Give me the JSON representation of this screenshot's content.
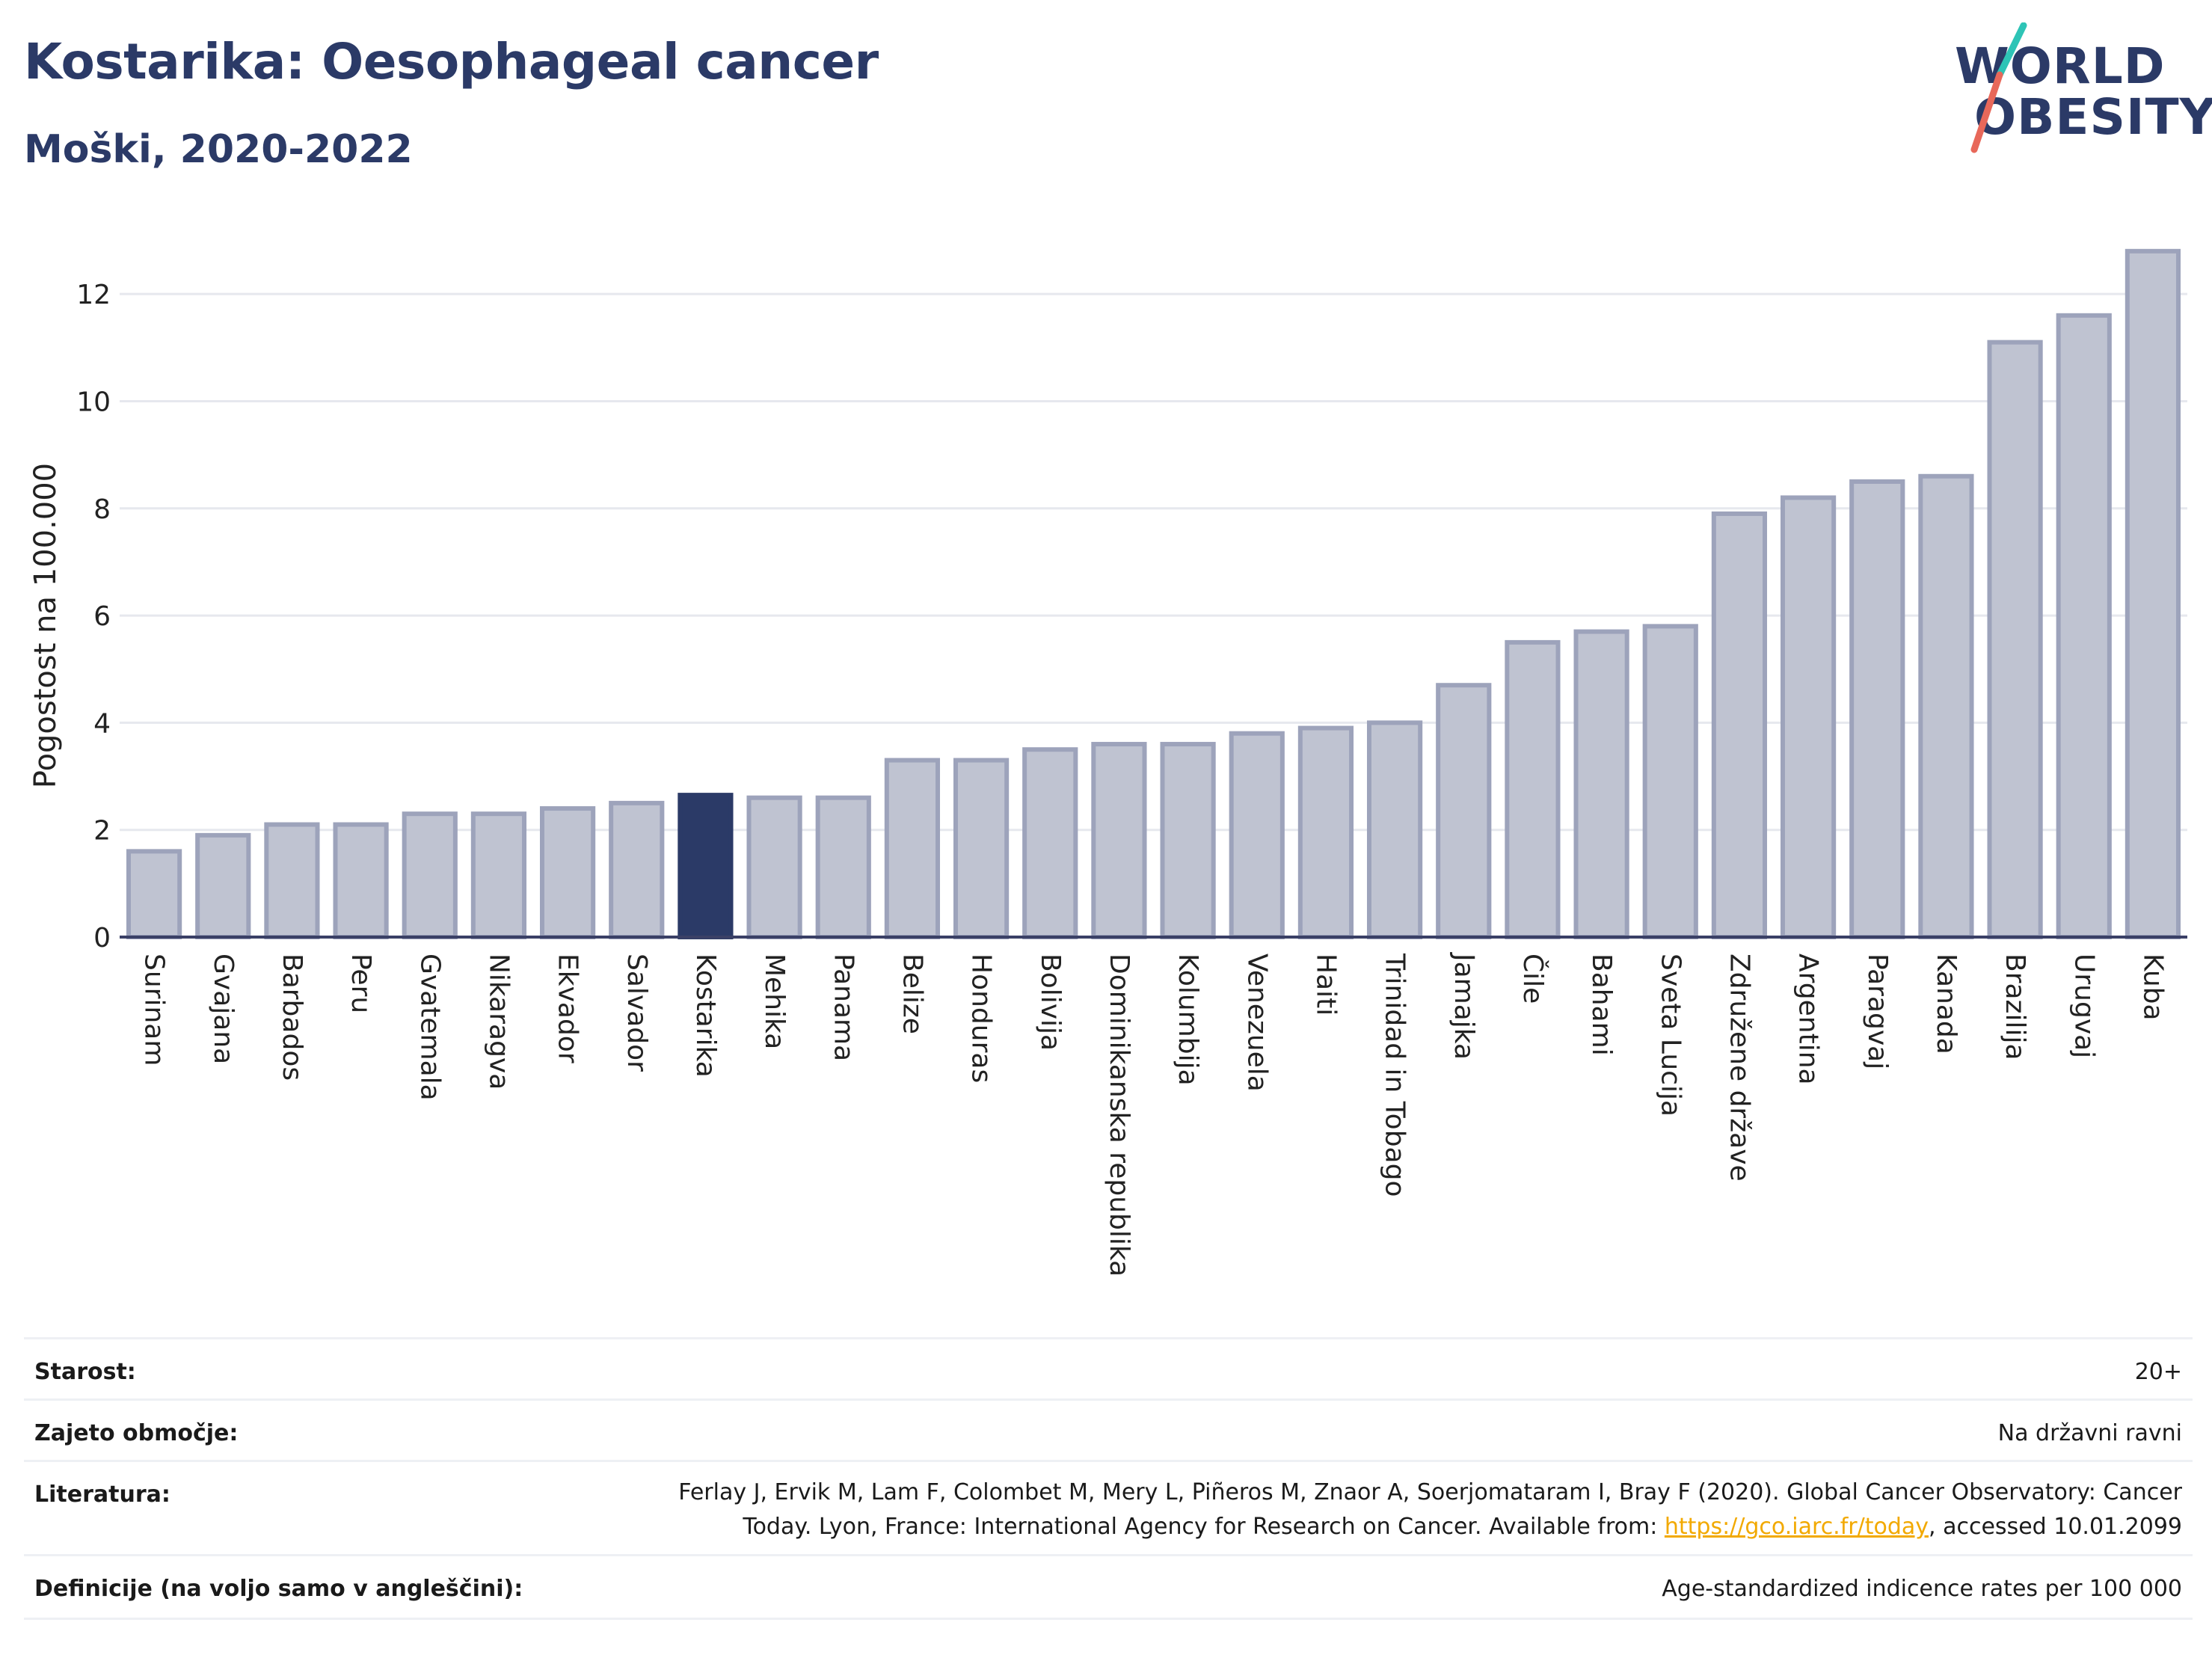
{
  "header": {
    "title": "Kostarika: Oesophageal cancer",
    "subtitle": "Moški, 2020-2022"
  },
  "logo": {
    "line1": "WORLD",
    "line2": "OBESITY",
    "colors": {
      "text": "#2b3a67",
      "slash_top": "#2ec4b6",
      "slash_bottom": "#e8685a"
    }
  },
  "chart_data": {
    "type": "bar",
    "ylabel": "Pogostost na 100.000",
    "xlabel": "",
    "ylim": [
      0,
      13.3
    ],
    "yticks": [
      0,
      2,
      4,
      6,
      8,
      10,
      12
    ],
    "grid": true,
    "highlight": "Kostarika",
    "colors": {
      "bar": "#bfc3d1",
      "bar_edge": "#9da3bb",
      "highlight": "#2b3a67",
      "grid": "#e6e8ee",
      "axis": "#3a4066"
    },
    "categories": [
      "Surinam",
      "Gvajana",
      "Barbados",
      "Peru",
      "Gvatemala",
      "Nikaragva",
      "Ekvador",
      "Salvador",
      "Kostarika",
      "Mehika",
      "Panama",
      "Belize",
      "Honduras",
      "Bolivija",
      "Dominikanska republika",
      "Kolumbija",
      "Venezuela",
      "Haiti",
      "Trinidad in Tobago",
      "Jamajka",
      "Čile",
      "Bahami",
      "Sveta Lucija",
      "Združene države",
      "Argentina",
      "Paragvaj",
      "Kanada",
      "Brazilija",
      "Urugvaj",
      "Kuba"
    ],
    "values": [
      1.6,
      1.9,
      2.1,
      2.1,
      2.3,
      2.3,
      2.4,
      2.5,
      2.65,
      2.6,
      2.6,
      3.3,
      3.3,
      3.5,
      3.6,
      3.6,
      3.8,
      3.9,
      4.0,
      4.7,
      5.5,
      5.7,
      5.8,
      7.9,
      8.2,
      8.5,
      8.6,
      11.1,
      11.6,
      12.8
    ]
  },
  "info": {
    "age_label": "Starost:",
    "age_value": "20+",
    "coverage_label": "Zajeto območje:",
    "coverage_value": "Na državni ravni",
    "ref_label": "Literatura:",
    "ref_text_1": "Ferlay J, Ervik M, Lam F, Colombet M, Mery L, Piñeros M, Znaor A, Soerjomataram I, Bray F (2020). Global Cancer Observatory: Cancer",
    "ref_text_2": "Today. Lyon, France: International Agency for Research on Cancer. Available from: ",
    "ref_link": "https://gco.iarc.fr/today",
    "ref_text_3": ", accessed 10.01.2099",
    "def_label": "Definicije (na voljo samo v angleščini):",
    "def_value": "Age-standardized indicence rates per 100 000"
  }
}
